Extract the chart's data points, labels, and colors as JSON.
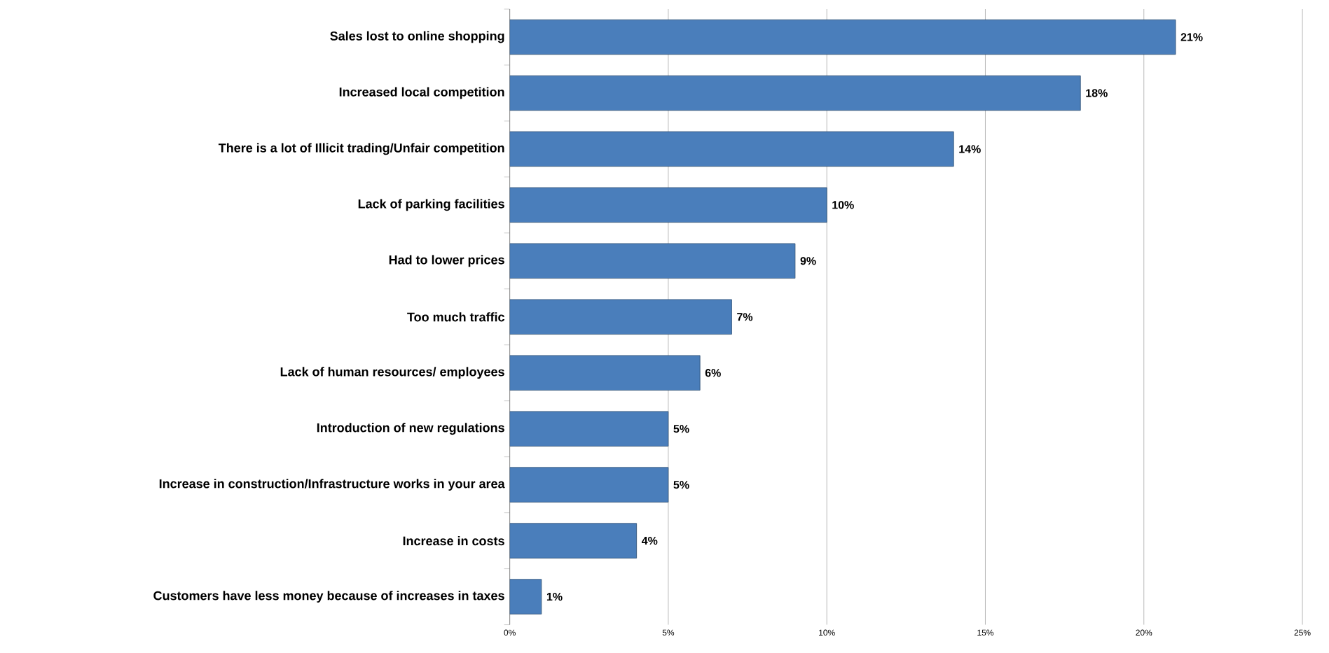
{
  "chart_data": {
    "type": "bar",
    "orientation": "horizontal",
    "categories": [
      "Sales lost to online shopping",
      "Increased local competition",
      "There is a lot of Illicit trading/Unfair competition",
      "Lack of parking facilities",
      "Had to lower prices",
      "Too much traffic",
      "Lack of human resources/ employees",
      "Introduction of new regulations",
      "Increase in construction/Infrastructure works in your area",
      "Increase in costs",
      "Customers have less money because of increases in taxes"
    ],
    "values": [
      21,
      18,
      14,
      10,
      9,
      7,
      6,
      5,
      5,
      4,
      1
    ],
    "value_labels": [
      "21%",
      "18%",
      "14%",
      "10%",
      "9%",
      "7%",
      "6%",
      "5%",
      "5%",
      "4%",
      "1%"
    ],
    "color": "#4a7ebb",
    "xlim": [
      0,
      25
    ],
    "xticks": [
      {
        "value": 0,
        "label": "0%"
      },
      {
        "value": 5,
        "label": "5%"
      },
      {
        "value": 10,
        "label": "10%"
      },
      {
        "value": 15,
        "label": "15%"
      },
      {
        "value": 20,
        "label": "20%"
      },
      {
        "value": 25,
        "label": "25%"
      }
    ],
    "grid": "x"
  }
}
